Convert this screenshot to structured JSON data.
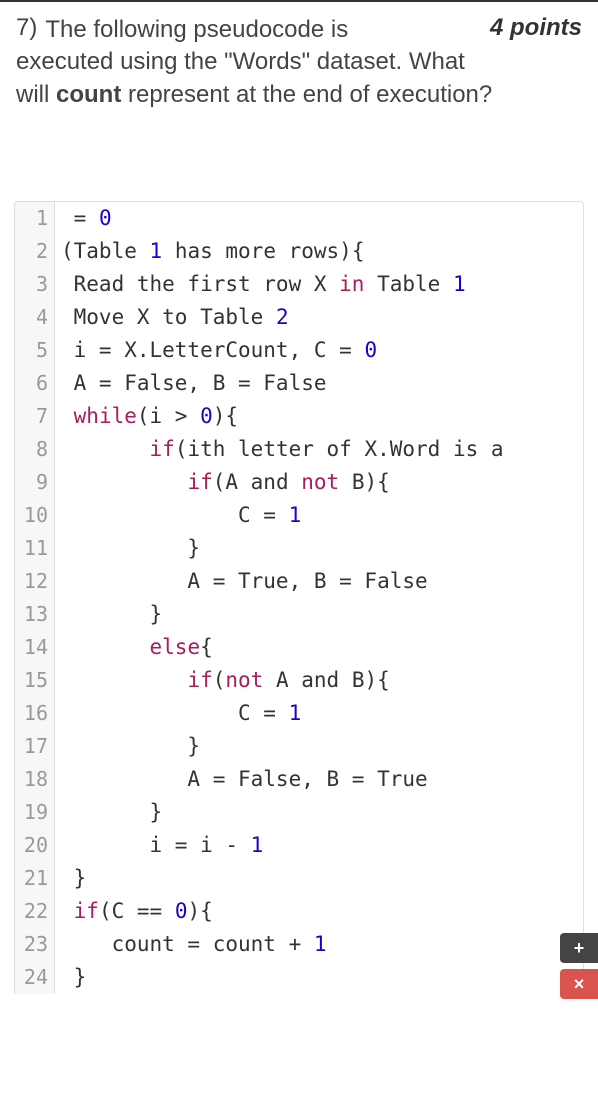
{
  "question": {
    "number": "7)",
    "points": "4 points",
    "text_line1": "The following pseudocode is",
    "text_line2_a": "executed using the \"Words\" dataset. What",
    "text_line3_a": "will ",
    "text_line3_bold": "count",
    "text_line3_b": " represent at the end of execution?"
  },
  "code": {
    "font_family": "monospace",
    "font_size_pt": 16,
    "gutter_bg": "#f7f7f7",
    "gutter_fg": "#999999",
    "border_color": "#dddddd",
    "text_color": "#333333",
    "number_color": "#1c00cf",
    "keyword_color": "#a71d5d",
    "lines": [
      {
        "n": 1,
        "tokens": [
          {
            "t": " = ",
            "c": "plain"
          },
          {
            "t": "0",
            "c": "num"
          }
        ]
      },
      {
        "n": 2,
        "tokens": [
          {
            "t": "(Table ",
            "c": "plain"
          },
          {
            "t": "1",
            "c": "num"
          },
          {
            "t": " has more rows){",
            "c": "plain"
          }
        ]
      },
      {
        "n": 3,
        "tokens": [
          {
            "t": " Read the first row X ",
            "c": "plain"
          },
          {
            "t": "in",
            "c": "kw"
          },
          {
            "t": " Table ",
            "c": "plain"
          },
          {
            "t": "1",
            "c": "num"
          }
        ]
      },
      {
        "n": 4,
        "tokens": [
          {
            "t": " Move X to Table ",
            "c": "plain"
          },
          {
            "t": "2",
            "c": "num"
          }
        ]
      },
      {
        "n": 5,
        "tokens": [
          {
            "t": " i = X.LetterCount, C = ",
            "c": "plain"
          },
          {
            "t": "0",
            "c": "num"
          }
        ]
      },
      {
        "n": 6,
        "tokens": [
          {
            "t": " A = False, B = False",
            "c": "plain"
          }
        ]
      },
      {
        "n": 7,
        "tokens": [
          {
            "t": " ",
            "c": "plain"
          },
          {
            "t": "while",
            "c": "kw"
          },
          {
            "t": "(i > ",
            "c": "plain"
          },
          {
            "t": "0",
            "c": "num"
          },
          {
            "t": "){",
            "c": "plain"
          }
        ]
      },
      {
        "n": 8,
        "tokens": [
          {
            "t": "       ",
            "c": "plain"
          },
          {
            "t": "if",
            "c": "kw"
          },
          {
            "t": "(ith letter of X.Word is a",
            "c": "plain"
          }
        ]
      },
      {
        "n": 9,
        "tokens": [
          {
            "t": "          ",
            "c": "plain"
          },
          {
            "t": "if",
            "c": "kw"
          },
          {
            "t": "(A and ",
            "c": "plain"
          },
          {
            "t": "not",
            "c": "kw"
          },
          {
            "t": " B){",
            "c": "plain"
          }
        ]
      },
      {
        "n": 10,
        "tokens": [
          {
            "t": "              C = ",
            "c": "plain"
          },
          {
            "t": "1",
            "c": "num"
          }
        ]
      },
      {
        "n": 11,
        "tokens": [
          {
            "t": "          }",
            "c": "plain"
          }
        ]
      },
      {
        "n": 12,
        "tokens": [
          {
            "t": "          A = True, B = False",
            "c": "plain"
          }
        ]
      },
      {
        "n": 13,
        "tokens": [
          {
            "t": "       }",
            "c": "plain"
          }
        ]
      },
      {
        "n": 14,
        "tokens": [
          {
            "t": "       ",
            "c": "plain"
          },
          {
            "t": "else",
            "c": "kw"
          },
          {
            "t": "{",
            "c": "plain"
          }
        ]
      },
      {
        "n": 15,
        "tokens": [
          {
            "t": "          ",
            "c": "plain"
          },
          {
            "t": "if",
            "c": "kw"
          },
          {
            "t": "(",
            "c": "plain"
          },
          {
            "t": "not",
            "c": "kw"
          },
          {
            "t": " A and B){",
            "c": "plain"
          }
        ]
      },
      {
        "n": 16,
        "tokens": [
          {
            "t": "              C = ",
            "c": "plain"
          },
          {
            "t": "1",
            "c": "num"
          }
        ]
      },
      {
        "n": 17,
        "tokens": [
          {
            "t": "          }",
            "c": "plain"
          }
        ]
      },
      {
        "n": 18,
        "tokens": [
          {
            "t": "          A = False, B = True",
            "c": "plain"
          }
        ]
      },
      {
        "n": 19,
        "tokens": [
          {
            "t": "       }",
            "c": "plain"
          }
        ]
      },
      {
        "n": 20,
        "tokens": [
          {
            "t": "       i = i - ",
            "c": "plain"
          },
          {
            "t": "1",
            "c": "num"
          }
        ]
      },
      {
        "n": 21,
        "tokens": [
          {
            "t": " }",
            "c": "plain"
          }
        ]
      },
      {
        "n": 22,
        "tokens": [
          {
            "t": " ",
            "c": "plain"
          },
          {
            "t": "if",
            "c": "kw"
          },
          {
            "t": "(C == ",
            "c": "plain"
          },
          {
            "t": "0",
            "c": "num"
          },
          {
            "t": "){",
            "c": "plain"
          }
        ]
      },
      {
        "n": 23,
        "tokens": [
          {
            "t": "    count = count + ",
            "c": "plain"
          },
          {
            "t": "1",
            "c": "num"
          }
        ]
      },
      {
        "n": 24,
        "tokens": [
          {
            "t": " }",
            "c": "plain"
          }
        ]
      }
    ]
  },
  "fab": {
    "plus_bg": "#444444",
    "x_bg": "#d9534f",
    "plus_label": "+",
    "x_label": "×"
  }
}
